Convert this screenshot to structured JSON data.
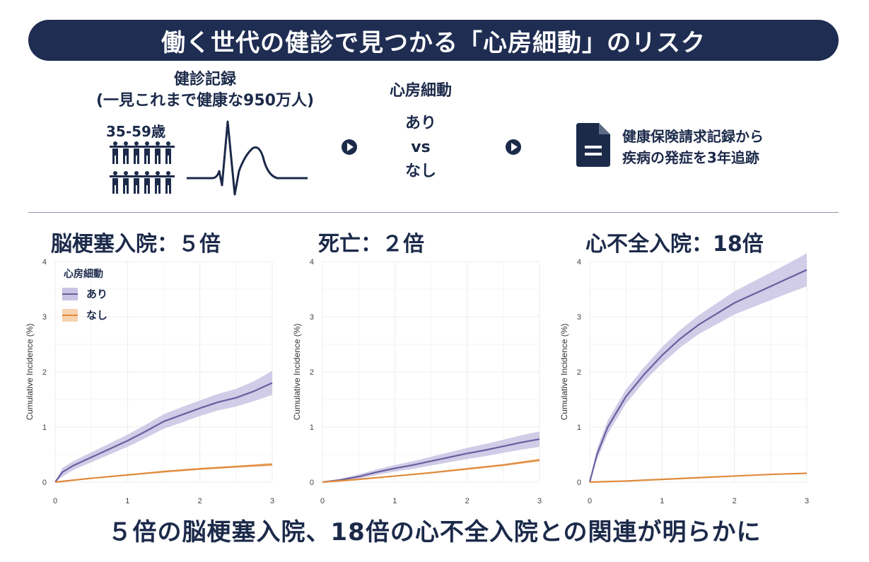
{
  "title": "働く世代の健診で見つかる「心房細動」のリスク",
  "flow": {
    "records_title": "健診記録",
    "records_subtitle": "(一見これまで健康な950万人)",
    "age": "35-59歳",
    "af_title": "心房細動",
    "af_yes": "あり",
    "af_vs": "vs",
    "af_no": "なし",
    "claims_line1": "健康保険請求記録から",
    "claims_line2": "疾病の発症を3年追跡",
    "icons": [
      "people-icon",
      "ecg-icon",
      "play-arrow-icon",
      "document-icon"
    ]
  },
  "panels": [
    {
      "title": "脳梗塞入院：５倍"
    },
    {
      "title": "死亡：２倍"
    },
    {
      "title": "心不全入院：18倍"
    }
  ],
  "footer": "５倍の脳梗塞入院、18倍の心不全入院との関連が明らかに",
  "colors": {
    "navy": "#1f2d52",
    "af_yes_line": "#6a5f9e",
    "af_yes_band": "#c9c3e3",
    "af_no_line": "#e08a3c",
    "af_no_band": "#f6d2b0"
  },
  "chart_data": [
    {
      "type": "line",
      "title": "脳梗塞入院：５倍",
      "ylabel": "Cumulative Incidence (%)",
      "xlim": [
        0,
        3
      ],
      "ylim": [
        0,
        4
      ],
      "xticks": [
        0,
        1,
        2,
        3
      ],
      "yticks": [
        0,
        1,
        2,
        3,
        4
      ],
      "grid": true,
      "legend": {
        "title": "心房細動",
        "placement": "top-left"
      },
      "series": [
        {
          "name": "あり",
          "x": [
            0,
            0.1,
            0.25,
            0.5,
            0.75,
            1.0,
            1.25,
            1.5,
            1.75,
            2.0,
            2.25,
            2.5,
            2.75,
            3.0
          ],
          "y": [
            0,
            0.18,
            0.3,
            0.45,
            0.6,
            0.75,
            0.92,
            1.1,
            1.22,
            1.34,
            1.45,
            1.53,
            1.65,
            1.8
          ],
          "lower": [
            0,
            0.1,
            0.22,
            0.36,
            0.5,
            0.64,
            0.8,
            0.97,
            1.08,
            1.2,
            1.3,
            1.37,
            1.47,
            1.58
          ],
          "upper": [
            0,
            0.26,
            0.38,
            0.54,
            0.7,
            0.86,
            1.04,
            1.23,
            1.36,
            1.48,
            1.6,
            1.69,
            1.83,
            2.02
          ]
        },
        {
          "name": "なし",
          "x": [
            0,
            0.5,
            1.0,
            1.5,
            2.0,
            2.5,
            3.0
          ],
          "y": [
            0,
            0.07,
            0.13,
            0.19,
            0.24,
            0.28,
            0.32
          ],
          "lower": [
            0,
            0.06,
            0.12,
            0.17,
            0.22,
            0.26,
            0.29
          ],
          "upper": [
            0,
            0.08,
            0.14,
            0.21,
            0.26,
            0.3,
            0.35
          ]
        }
      ]
    },
    {
      "type": "line",
      "title": "死亡：２倍",
      "ylabel": "Cumulative Incidence (%)",
      "xlim": [
        0,
        3
      ],
      "ylim": [
        0,
        4
      ],
      "xticks": [
        0,
        1,
        2,
        3
      ],
      "yticks": [
        0,
        1,
        2,
        3,
        4
      ],
      "grid": true,
      "series": [
        {
          "name": "あり",
          "x": [
            0,
            0.25,
            0.5,
            0.75,
            1.0,
            1.25,
            1.5,
            1.75,
            2.0,
            2.25,
            2.5,
            2.75,
            3.0
          ],
          "y": [
            0,
            0.04,
            0.1,
            0.18,
            0.25,
            0.31,
            0.38,
            0.45,
            0.52,
            0.58,
            0.65,
            0.72,
            0.78
          ],
          "lower": [
            0,
            0.02,
            0.06,
            0.13,
            0.19,
            0.24,
            0.3,
            0.36,
            0.42,
            0.47,
            0.53,
            0.59,
            0.64
          ],
          "upper": [
            0,
            0.06,
            0.14,
            0.23,
            0.31,
            0.38,
            0.46,
            0.54,
            0.62,
            0.69,
            0.77,
            0.85,
            0.92
          ]
        },
        {
          "name": "なし",
          "x": [
            0,
            0.5,
            1.0,
            1.5,
            2.0,
            2.5,
            3.0
          ],
          "y": [
            0,
            0.05,
            0.11,
            0.17,
            0.24,
            0.31,
            0.4
          ],
          "lower": [
            0,
            0.04,
            0.1,
            0.16,
            0.22,
            0.29,
            0.37
          ],
          "upper": [
            0,
            0.06,
            0.12,
            0.18,
            0.26,
            0.33,
            0.43
          ]
        }
      ]
    },
    {
      "type": "line",
      "title": "心不全入院：18倍",
      "ylabel": "Cumulative Incidence (%)",
      "xlim": [
        0,
        3
      ],
      "ylim": [
        0,
        4
      ],
      "xticks": [
        0,
        1,
        2,
        3
      ],
      "yticks": [
        0,
        1,
        2,
        3,
        4
      ],
      "grid": true,
      "series": [
        {
          "name": "あり",
          "x": [
            0,
            0.1,
            0.25,
            0.5,
            0.75,
            1.0,
            1.25,
            1.5,
            1.75,
            2.0,
            2.25,
            2.5,
            2.75,
            3.0
          ],
          "y": [
            0,
            0.5,
            1.0,
            1.55,
            1.95,
            2.3,
            2.6,
            2.85,
            3.05,
            3.25,
            3.4,
            3.55,
            3.7,
            3.85
          ],
          "lower": [
            0,
            0.4,
            0.88,
            1.42,
            1.82,
            2.15,
            2.44,
            2.68,
            2.86,
            3.04,
            3.17,
            3.3,
            3.43,
            3.55
          ],
          "upper": [
            0,
            0.6,
            1.12,
            1.68,
            2.08,
            2.45,
            2.76,
            3.02,
            3.24,
            3.46,
            3.63,
            3.8,
            3.97,
            4.15
          ]
        },
        {
          "name": "なし",
          "x": [
            0,
            0.5,
            1.0,
            1.5,
            2.0,
            2.5,
            3.0
          ],
          "y": [
            0,
            0.02,
            0.05,
            0.08,
            0.11,
            0.14,
            0.16
          ],
          "lower": [
            0,
            0.015,
            0.04,
            0.07,
            0.1,
            0.13,
            0.15
          ],
          "upper": [
            0,
            0.025,
            0.06,
            0.09,
            0.12,
            0.15,
            0.17
          ]
        }
      ]
    }
  ]
}
